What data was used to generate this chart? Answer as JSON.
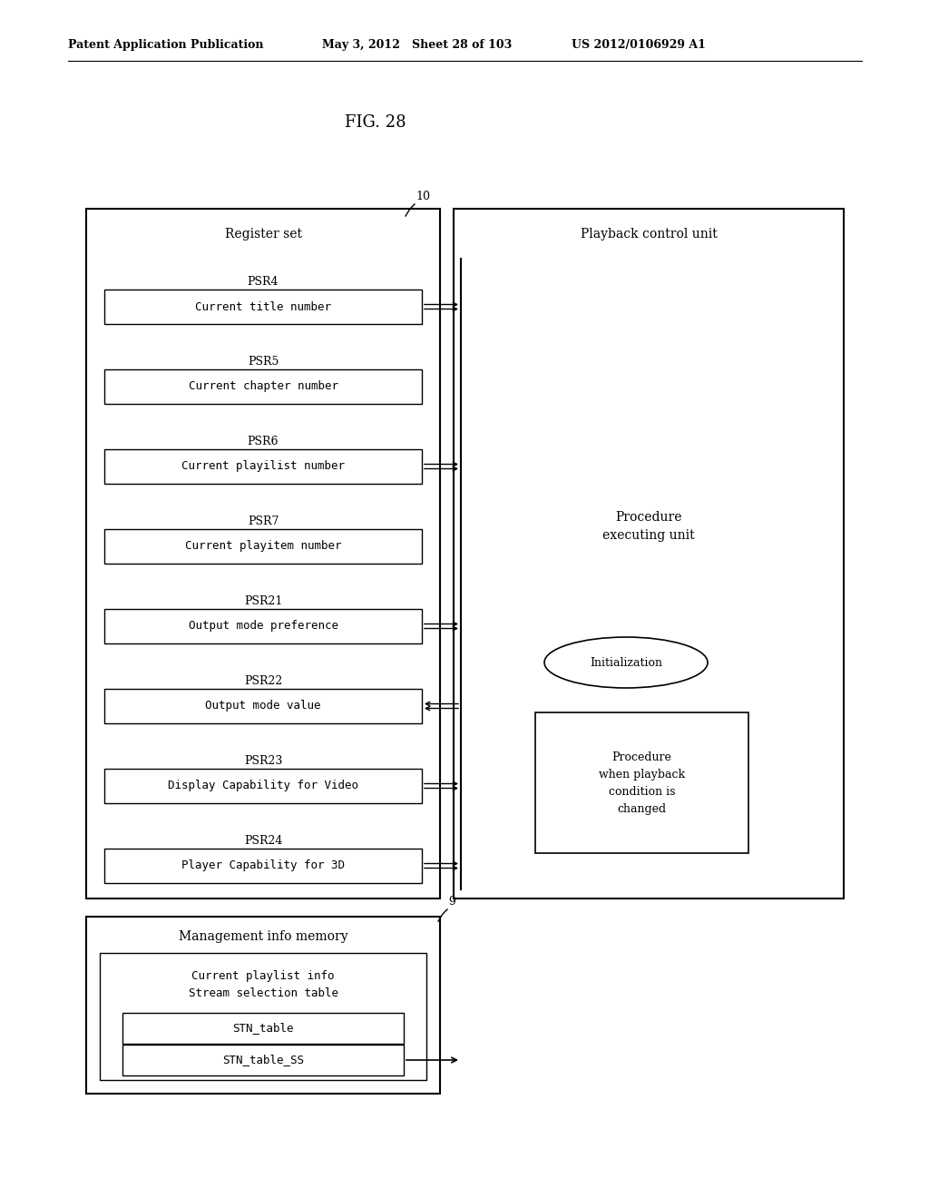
{
  "bg_color": "#ffffff",
  "header_left": "Patent Application Publication",
  "header_mid": "May 3, 2012   Sheet 28 of 103",
  "header_right": "US 2012/0106929 A1",
  "fig_label": "FIG. 28",
  "register_set_label": "Register set",
  "playback_control_label": "Playback control unit",
  "management_memory_label": "Management info memory",
  "procedure_exec_label": "Procedure\nexecuting unit",
  "initialization_label": "Initialization",
  "procedure_changed_label": "Procedure\nwhen playback\ncondition is\nchanged",
  "label_10": "10",
  "label_9": "9",
  "psrs": [
    {
      "label": "PSR4",
      "box": "Current title number",
      "arrow_right": true,
      "arrow_left": false
    },
    {
      "label": "PSR5",
      "box": "Current chapter number",
      "arrow_right": false,
      "arrow_left": false
    },
    {
      "label": "PSR6",
      "box": "Current playilist number",
      "arrow_right": true,
      "arrow_left": false
    },
    {
      "label": "PSR7",
      "box": "Current playitem number",
      "arrow_right": false,
      "arrow_left": false
    },
    {
      "label": "PSR21",
      "box": "Output mode preference",
      "arrow_right": true,
      "arrow_left": false
    },
    {
      "label": "PSR22",
      "box": "Output mode value",
      "arrow_right": false,
      "arrow_left": true
    },
    {
      "label": "PSR23",
      "box": "Display Capability for Video",
      "arrow_right": true,
      "arrow_left": false
    },
    {
      "label": "PSR24",
      "box": "Player Capability for 3D",
      "arrow_right": true,
      "arrow_left": false
    }
  ]
}
